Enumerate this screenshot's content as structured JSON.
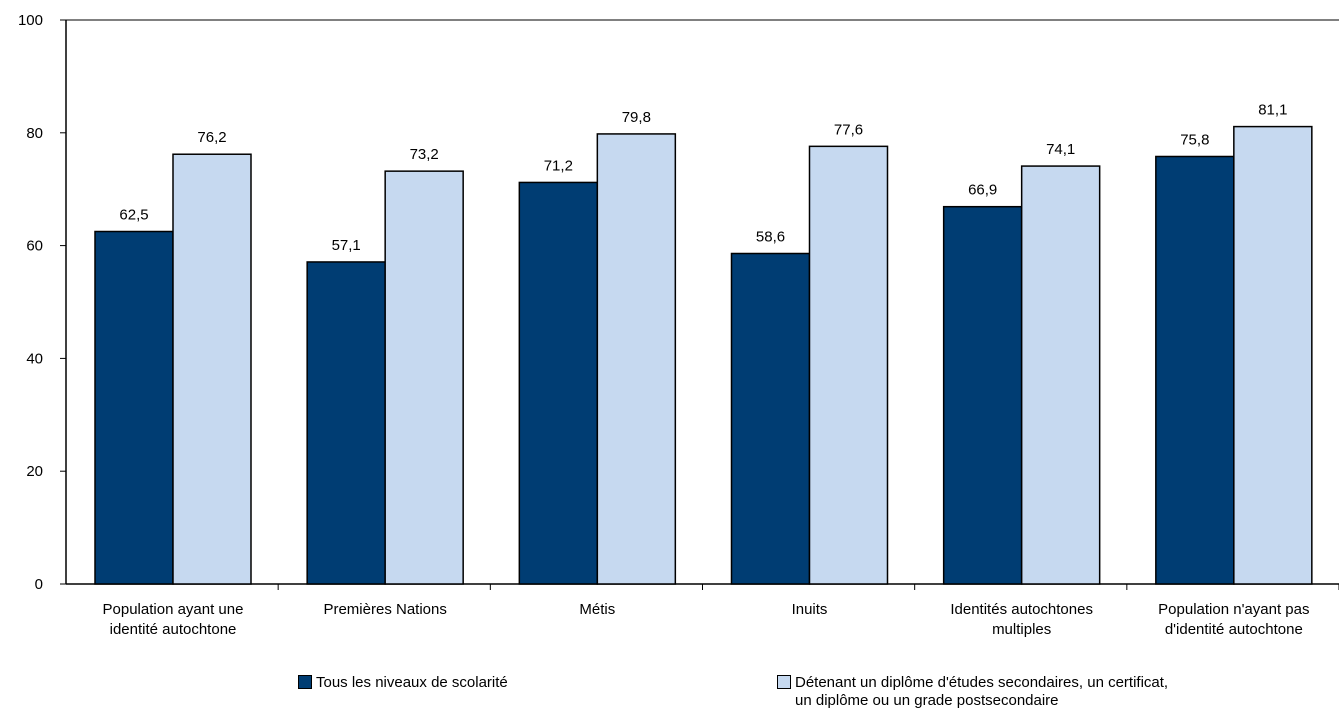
{
  "chart_data": {
    "type": "bar",
    "ylim": [
      0,
      100
    ],
    "yticks": [
      "0",
      "20",
      "40",
      "60",
      "80",
      "100"
    ],
    "grid": false,
    "legend_position": "bottom",
    "categories": [
      [
        "Population ayant une",
        "identité autochtone"
      ],
      [
        "Premières Nations"
      ],
      [
        "Métis"
      ],
      [
        "Inuits"
      ],
      [
        "Identités autochtones",
        "multiples"
      ],
      [
        "Population n'ayant pas",
        "d'identité autochtone"
      ]
    ],
    "series": [
      {
        "name": "Tous les niveaux de scolarité",
        "color": "#003d73",
        "values": [
          62.5,
          57.1,
          71.2,
          58.6,
          66.9,
          75.8
        ],
        "labels": [
          "62,5",
          "57,1",
          "71,2",
          "58,6",
          "66,9",
          "75,8"
        ]
      },
      {
        "name": "Détenant un diplôme d'études secondaires, un certificat, un diplôme ou un grade postsecondaire",
        "name_lines": [
          "Détenant un diplôme d'études secondaires, un certificat,",
          "un diplôme ou un grade postsecondaire"
        ],
        "color": "#c6d9f0",
        "values": [
          76.2,
          73.2,
          79.8,
          77.6,
          74.1,
          81.1
        ],
        "labels": [
          "76,2",
          "73,2",
          "79,8",
          "77,6",
          "74,1",
          "81,1"
        ]
      }
    ]
  }
}
